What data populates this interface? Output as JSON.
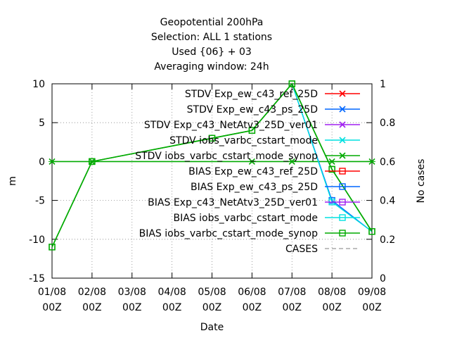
{
  "chart_data": {
    "type": "line",
    "title_lines": [
      "Geopotential 200hPa",
      "Selection: ALL      1 stations",
      "Used {06} + 03",
      "Averaging window: 24h"
    ],
    "xlabel": "Date",
    "ylabel": "m",
    "y2label": "No cases",
    "categories": [
      "01/08",
      "02/08",
      "03/08",
      "04/08",
      "05/08",
      "06/08",
      "07/08",
      "08/08",
      "09/08"
    ],
    "category_sublabel": "00Z",
    "ylim": [
      -15,
      10
    ],
    "yticks": [
      -15,
      -10,
      -5,
      0,
      5,
      10
    ],
    "y2lim": [
      0,
      1
    ],
    "y2ticks": [
      0,
      0.2,
      0.4,
      0.6,
      0.8,
      1
    ],
    "grid": "dotted",
    "legend_position": "top-right",
    "series": [
      {
        "name": "STDV Exp_ew_c43_ref_25D",
        "color": "#ff0000",
        "marker": "x",
        "axis": "y",
        "x": [],
        "values": []
      },
      {
        "name": "STDV Exp_ew_c43_ps_25D",
        "color": "#0066ff",
        "marker": "x",
        "axis": "y",
        "x": [],
        "values": []
      },
      {
        "name": "STDV Exp_c43_NetAtv3_25D_ver01",
        "color": "#a020f0",
        "marker": "x",
        "axis": "y",
        "x": [],
        "values": []
      },
      {
        "name": "STDV iobs_varbc_cstart_mode",
        "color": "#00e0e0",
        "marker": "x",
        "axis": "y",
        "x": [],
        "values": []
      },
      {
        "name": "STDV iobs_varbc_cstart_mode_synop",
        "color": "#00aa00",
        "marker": "x",
        "axis": "y",
        "x": [
          0,
          1,
          5,
          6,
          7,
          8
        ],
        "values": [
          0,
          0,
          0,
          0,
          0,
          0
        ]
      },
      {
        "name": "BIAS Exp_ew_c43_ref_25D",
        "color": "#ff0000",
        "marker": "square",
        "axis": "y",
        "x": [],
        "values": []
      },
      {
        "name": "BIAS Exp_ew_c43_ps_25D",
        "color": "#0066ff",
        "marker": "square",
        "axis": "y",
        "x": [
          7
        ],
        "values": [
          -5
        ]
      },
      {
        "name": "BIAS Exp_c43_NetAtv3_25D_ver01",
        "color": "#a020f0",
        "marker": "square",
        "axis": "y",
        "x": [],
        "values": []
      },
      {
        "name": "BIAS iobs_varbc_cstart_mode",
        "color": "#00e0e0",
        "marker": "square",
        "axis": "y",
        "x": [
          7
        ],
        "values": [
          -5.2
        ]
      },
      {
        "name": "BIAS iobs_varbc_cstart_mode_synop",
        "color": "#00aa00",
        "marker": "square",
        "axis": "y",
        "x": [
          0,
          1,
          4,
          5,
          6,
          7,
          8
        ],
        "values": [
          -11,
          0,
          3,
          4,
          10,
          -1,
          -9
        ]
      },
      {
        "name": "CASES",
        "color": "#aaaaaa",
        "marker": "none",
        "dash": "6,4",
        "axis": "y2",
        "x": [],
        "values": []
      }
    ]
  }
}
